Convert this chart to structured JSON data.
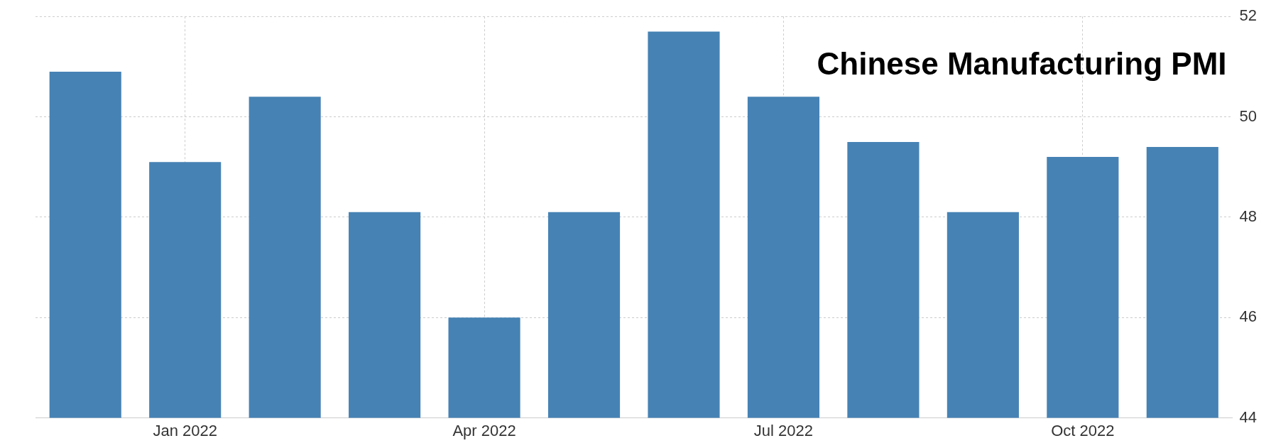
{
  "chart_data": {
    "type": "bar",
    "title": "Chinese Manufacturing PMI",
    "categories": [
      null,
      "Jan 2022",
      null,
      null,
      "Apr 2022",
      null,
      null,
      "Jul 2022",
      null,
      null,
      "Oct 2022",
      null
    ],
    "values": [
      50.9,
      49.1,
      50.4,
      48.1,
      46.0,
      48.1,
      51.7,
      50.4,
      49.5,
      48.1,
      49.2,
      49.4
    ],
    "color": "#4682b4",
    "ylim": [
      44,
      52
    ],
    "yticks": [
      44,
      46,
      48,
      50,
      52
    ],
    "grid": true,
    "legend": false
  }
}
